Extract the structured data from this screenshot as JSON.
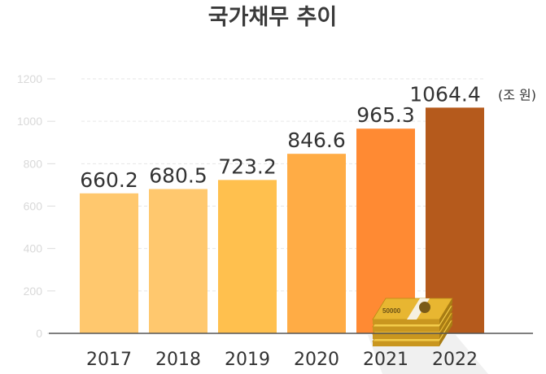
{
  "chart_data": {
    "type": "bar",
    "title": "국가채무 추이",
    "unit_label": "(조 원)",
    "categories": [
      "2017",
      "2018",
      "2019",
      "2020",
      "2021",
      "2022"
    ],
    "values": [
      660.2,
      680.5,
      723.2,
      846.6,
      965.3,
      1064.4
    ],
    "value_labels": [
      "660.2",
      "680.5",
      "723.2",
      "846.6",
      "965.3",
      "1064.4"
    ],
    "yticks": [
      "0",
      "200",
      "400",
      "600",
      "800",
      "1000",
      "1200"
    ],
    "ylim": [
      0,
      1200
    ],
    "grid": true,
    "bar_colors": [
      "#ffc86e",
      "#ffc86e",
      "#ffc04e",
      "#ffac45",
      "#ff8a33",
      "#b55a1c"
    ],
    "highlight_label_color": "#c0621c",
    "money_icon_text": "50000"
  }
}
